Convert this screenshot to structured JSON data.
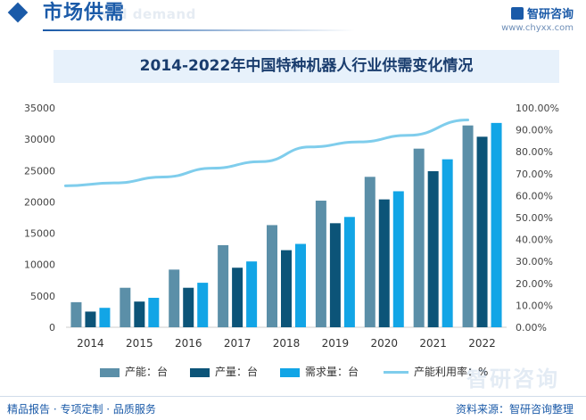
{
  "header": {
    "section_title": "市场供需",
    "section_subtitle": "and demand",
    "brand_name": "智研咨询",
    "brand_url": "www.chyxx.com",
    "accent_color": "#1a5aa8"
  },
  "footer": {
    "left_text": "精品报告 · 专项定制 · 品质服务",
    "source_text": "资料来源：智研咨询整理",
    "watermark": "智研咨询"
  },
  "chart_data": {
    "type": "bar",
    "title": "2014-2022年中国特种机器人行业供需变化情况",
    "categories": [
      "2014",
      "2015",
      "2016",
      "2017",
      "2018",
      "2019",
      "2020",
      "2021",
      "2022"
    ],
    "series": [
      {
        "name": "产能：台",
        "kind": "bar",
        "axis": "left",
        "color": "#5b8fa8",
        "values": [
          4000,
          6300,
          9200,
          13100,
          16300,
          20200,
          24000,
          28500,
          32200
        ]
      },
      {
        "name": "产量：台",
        "kind": "bar",
        "axis": "left",
        "color": "#0c5478",
        "values": [
          2500,
          4100,
          6300,
          9500,
          12300,
          16600,
          20400,
          24900,
          30400
        ]
      },
      {
        "name": "需求量：台",
        "kind": "bar",
        "axis": "left",
        "color": "#12a5e6",
        "values": [
          3100,
          4700,
          7100,
          10500,
          13300,
          17600,
          21700,
          26800,
          32600
        ]
      },
      {
        "name": "产能利用率：%",
        "kind": "line",
        "axis": "right",
        "color": "#7fcdec",
        "values": [
          64.5,
          65.8,
          68.5,
          72.5,
          75.5,
          82.2,
          84.5,
          87.5,
          94.5
        ]
      }
    ],
    "y_left": {
      "min": 0,
      "max": 35000,
      "step": 5000,
      "ticks": [
        "0",
        "5000",
        "10000",
        "15000",
        "20000",
        "25000",
        "30000",
        "35000"
      ]
    },
    "y_right": {
      "min": 0,
      "max": 100,
      "step": 10,
      "ticks": [
        "0.00%",
        "10.00%",
        "20.00%",
        "30.00%",
        "40.00%",
        "50.00%",
        "60.00%",
        "70.00%",
        "80.00%",
        "90.00%",
        "100.00%"
      ]
    },
    "grid": false,
    "legend_position": "bottom"
  }
}
